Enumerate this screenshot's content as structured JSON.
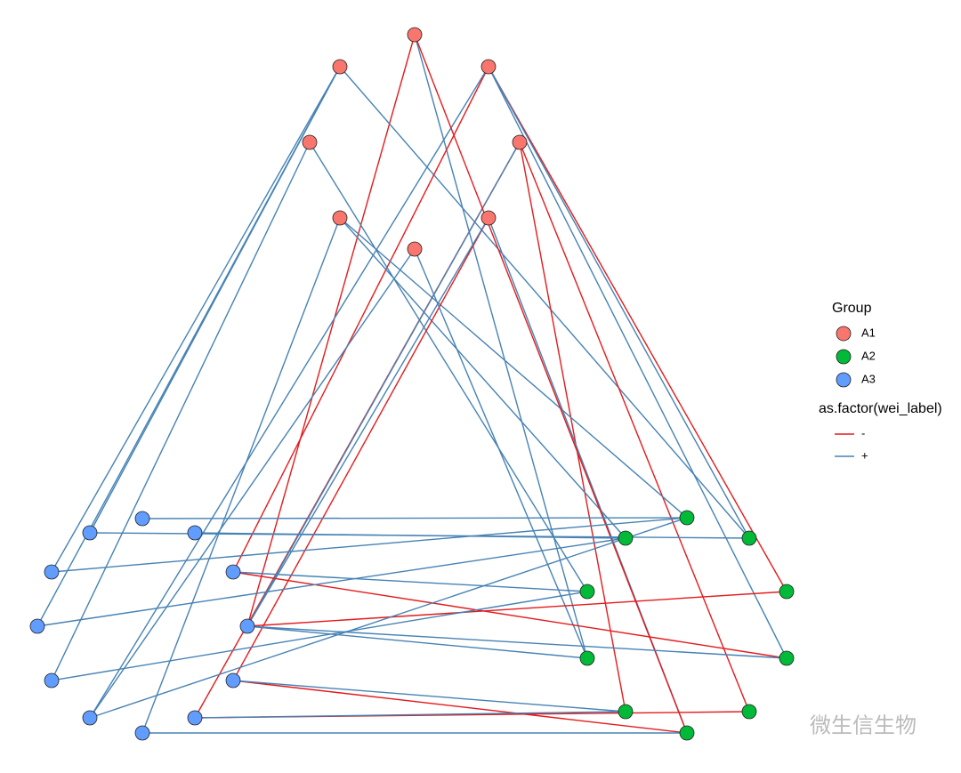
{
  "legend": {
    "group_title": "Group",
    "groups": [
      {
        "name": "A1",
        "color": "#F8766D"
      },
      {
        "name": "A2",
        "color": "#00BA38"
      },
      {
        "name": "A3",
        "color": "#619CFF"
      }
    ],
    "edge_title": "as.factor(wei_label)",
    "signs": [
      {
        "name": "-",
        "color": "#E41A1C"
      },
      {
        "name": "+",
        "color": "#4682B4"
      }
    ]
  },
  "nodes": [
    {
      "group": "A1"
    },
    {
      "group": "A1"
    },
    {
      "group": "A1"
    },
    {
      "group": "A1"
    },
    {
      "group": "A1"
    },
    {
      "group": "A1"
    },
    {
      "group": "A1"
    },
    {
      "group": "A1"
    },
    {
      "group": "A3"
    },
    {
      "group": "A3"
    },
    {
      "group": "A3"
    },
    {
      "group": "A3"
    },
    {
      "group": "A3"
    },
    {
      "group": "A3"
    },
    {
      "group": "A3"
    },
    {
      "group": "A3"
    },
    {
      "group": "A3"
    },
    {
      "group": "A3"
    },
    {
      "group": "A3"
    },
    {
      "group": "A3"
    },
    {
      "group": "A2"
    },
    {
      "group": "A2"
    },
    {
      "group": "A2"
    },
    {
      "group": "A2"
    },
    {
      "group": "A2"
    },
    {
      "group": "A2"
    },
    {
      "group": "A2"
    },
    {
      "group": "A2"
    },
    {
      "group": "A2"
    },
    {
      "group": "A2"
    }
  ],
  "edges": [
    {
      "source": 0,
      "target": 14,
      "sign": "-"
    },
    {
      "source": 0,
      "target": 25,
      "sign": "+"
    },
    {
      "source": 2,
      "target": 24,
      "sign": "-"
    },
    {
      "source": 1,
      "target": 9,
      "sign": "+"
    },
    {
      "source": 1,
      "target": 11,
      "sign": "+"
    },
    {
      "source": 1,
      "target": 22,
      "sign": "+"
    },
    {
      "source": 1,
      "target": 13,
      "sign": "+"
    },
    {
      "source": 2,
      "target": 12,
      "sign": "-"
    },
    {
      "source": 2,
      "target": 17,
      "sign": "+"
    },
    {
      "source": 2,
      "target": 26,
      "sign": "+"
    },
    {
      "source": 2,
      "target": 22,
      "sign": "+"
    },
    {
      "source": 3,
      "target": 23,
      "sign": "+"
    },
    {
      "source": 3,
      "target": 15,
      "sign": "+"
    },
    {
      "source": 4,
      "target": 18,
      "sign": "-"
    },
    {
      "source": 4,
      "target": 28,
      "sign": "-"
    },
    {
      "source": 4,
      "target": 27,
      "sign": "-"
    },
    {
      "source": 4,
      "target": 14,
      "sign": "+"
    },
    {
      "source": 5,
      "target": 19,
      "sign": "+"
    },
    {
      "source": 5,
      "target": 20,
      "sign": "+"
    },
    {
      "source": 5,
      "target": 21,
      "sign": "+"
    },
    {
      "source": 6,
      "target": 16,
      "sign": "-"
    },
    {
      "source": 6,
      "target": 14,
      "sign": "+"
    },
    {
      "source": 6,
      "target": 29,
      "sign": "+"
    },
    {
      "source": 7,
      "target": 25,
      "sign": "+"
    },
    {
      "source": 7,
      "target": 17,
      "sign": "+"
    },
    {
      "source": 0,
      "target": 29,
      "sign": "-"
    },
    {
      "source": 8,
      "target": 20,
      "sign": "+"
    },
    {
      "source": 9,
      "target": 22,
      "sign": "+"
    },
    {
      "source": 10,
      "target": 21,
      "sign": "+"
    },
    {
      "source": 11,
      "target": 20,
      "sign": "+"
    },
    {
      "source": 12,
      "target": 26,
      "sign": "-"
    },
    {
      "source": 12,
      "target": 23,
      "sign": "+"
    },
    {
      "source": 13,
      "target": 21,
      "sign": "+"
    },
    {
      "source": 14,
      "target": 24,
      "sign": "-"
    },
    {
      "source": 14,
      "target": 26,
      "sign": "+"
    },
    {
      "source": 14,
      "target": 25,
      "sign": "+"
    },
    {
      "source": 15,
      "target": 23,
      "sign": "+"
    },
    {
      "source": 16,
      "target": 29,
      "sign": "-"
    },
    {
      "source": 16,
      "target": 27,
      "sign": "+"
    },
    {
      "source": 17,
      "target": 20,
      "sign": "+"
    },
    {
      "source": 18,
      "target": 28,
      "sign": "-"
    },
    {
      "source": 18,
      "target": 27,
      "sign": "+"
    },
    {
      "source": 19,
      "target": 29,
      "sign": "+"
    }
  ],
  "watermark": "微生信生物"
}
